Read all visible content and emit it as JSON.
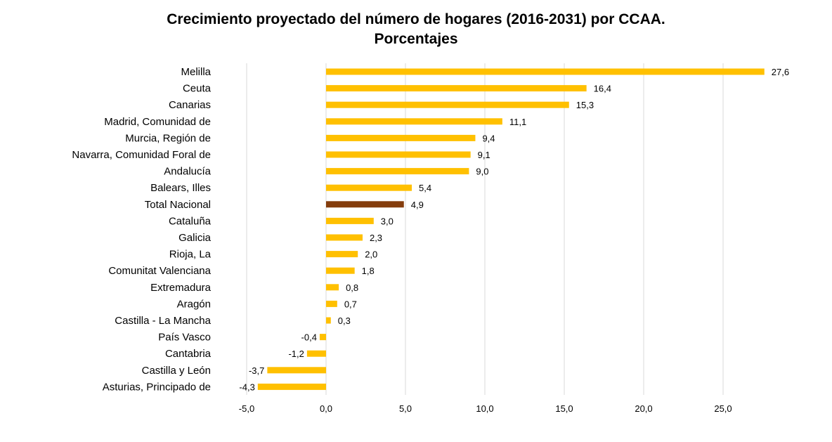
{
  "chart_data": {
    "type": "bar",
    "orientation": "horizontal",
    "title_line1": "Crecimiento proyectado del número de hogares (2016-2031) por CCAA.",
    "title_line2": "Porcentajes",
    "categories": [
      "Melilla",
      "Ceuta",
      "Canarias",
      "Madrid, Comunidad de",
      "Murcia, Región de",
      "Navarra, Comunidad Foral de",
      "Andalucía",
      "Balears, Illes",
      "Total Nacional",
      "Cataluña",
      "Galicia",
      "Rioja, La",
      "Comunitat Valenciana",
      "Extremadura",
      "Aragón",
      "Castilla - La Mancha",
      "País Vasco",
      "Cantabria",
      "Castilla y León",
      "Asturias, Principado de"
    ],
    "values": [
      27.6,
      16.4,
      15.3,
      11.1,
      9.4,
      9.1,
      9.0,
      5.4,
      4.9,
      3.0,
      2.3,
      2.0,
      1.8,
      0.8,
      0.7,
      0.3,
      -0.4,
      -1.2,
      -3.7,
      -4.3
    ],
    "value_labels": [
      "27,6",
      "16,4",
      "15,3",
      "11,1",
      "9,4",
      "9,1",
      "9,0",
      "5,4",
      "4,9",
      "3,0",
      "2,3",
      "2,0",
      "1,8",
      "0,8",
      "0,7",
      "0,3",
      "-0,4",
      "-1,2",
      "-3,7",
      "-4,3"
    ],
    "x_ticks": [
      -5,
      0,
      5,
      10,
      15,
      20,
      25
    ],
    "x_tick_labels": [
      "-5,0",
      "0,0",
      "5,0",
      "10,0",
      "15,0",
      "20,0",
      "25,0"
    ],
    "xlim": [
      -5,
      28.4
    ],
    "grid": true,
    "bar_color": "#FFC000",
    "highlight_color": "#843C0C",
    "highlight_category": "Total Nacional",
    "grid_color": "#D9D9D9"
  }
}
